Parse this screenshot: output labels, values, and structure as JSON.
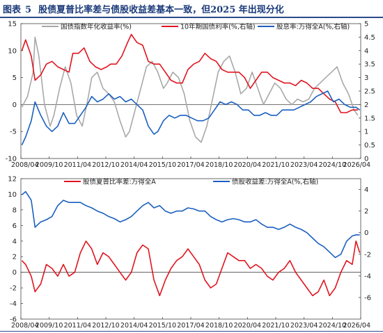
{
  "figure": {
    "label": "图表",
    "number": "5",
    "title": "股债夏普比率差与债股收益差基本一致，但2025 年出现分化"
  },
  "chart_data": [
    {
      "type": "line",
      "x_ticks": [
        "2008/04",
        "2009/10",
        "2011/04",
        "2012/10",
        "2014/04",
        "2015/10",
        "2017/04",
        "2018/10",
        "2020/04",
        "2021/10",
        "2023/04",
        "2024/10",
        "2026/04"
      ],
      "xlim": [
        2008.25,
        2026.25
      ],
      "ylim_left": [
        -10,
        15
      ],
      "yticks_left": [
        -10,
        -5,
        0,
        5,
        10,
        15
      ],
      "ylim_right": [
        0,
        5
      ],
      "yticks_right": [
        "0",
        "0.5",
        "1",
        "1.5",
        "2",
        "2.5",
        "3",
        "3.5",
        "4",
        "4.5",
        "5"
      ],
      "zero_line": true,
      "legend": "top",
      "series": [
        {
          "name": "国债指数年化收益率(%)",
          "axis": "left",
          "color": "#a8a8a8",
          "x": [
            2008.3,
            2008.6,
            2008.9,
            2009.0,
            2009.2,
            2009.5,
            2009.8,
            2010.0,
            2010.3,
            2010.6,
            2010.9,
            2011.2,
            2011.5,
            2011.8,
            2012.0,
            2012.3,
            2012.6,
            2012.9,
            2013.2,
            2013.5,
            2013.8,
            2014.0,
            2014.3,
            2014.6,
            2014.9,
            2015.2,
            2015.5,
            2015.8,
            2016.0,
            2016.3,
            2016.6,
            2016.9,
            2017.2,
            2017.5,
            2017.8,
            2018.1,
            2018.4,
            2018.7,
            2019.0,
            2019.3,
            2019.6,
            2019.9,
            2020.2,
            2020.5,
            2020.8,
            2021.1,
            2021.4,
            2021.7,
            2022.0,
            2022.3,
            2022.6,
            2022.9,
            2023.2,
            2023.5,
            2023.8,
            2024.1,
            2024.4,
            2024.7,
            2025.0,
            2025.3,
            2025.6,
            2025.9,
            2026.1
          ],
          "values": [
            -0.5,
            1.5,
            6,
            12.5,
            9,
            0,
            -4,
            -2,
            3,
            7,
            4,
            -2,
            -4,
            1,
            5,
            6,
            3,
            2,
            0.5,
            -3,
            -6,
            -5,
            -1,
            3,
            7,
            8,
            6,
            3,
            4,
            6,
            5,
            2,
            -3,
            -6,
            -7,
            -4,
            1,
            6,
            8,
            9,
            6,
            2,
            3,
            6,
            3,
            0,
            2,
            4,
            3,
            1,
            0,
            1,
            0.5,
            1,
            3,
            4,
            5,
            6,
            7,
            4,
            2,
            -1,
            -2
          ],
          "labels": []
        },
        {
          "name": "10年期国债利率(%,右轴)",
          "axis": "right",
          "color": "#e0141e",
          "x": [
            2008.3,
            2008.5,
            2008.8,
            2009.0,
            2009.3,
            2009.6,
            2009.9,
            2010.2,
            2010.5,
            2010.8,
            2011.0,
            2011.3,
            2011.6,
            2011.9,
            2012.2,
            2012.5,
            2012.8,
            2013.0,
            2013.3,
            2013.6,
            2013.9,
            2014.1,
            2014.4,
            2014.7,
            2015.0,
            2015.3,
            2015.6,
            2015.9,
            2016.2,
            2016.5,
            2016.8,
            2017.1,
            2017.4,
            2017.7,
            2018.0,
            2018.3,
            2018.6,
            2018.9,
            2019.2,
            2019.5,
            2019.8,
            2020.1,
            2020.4,
            2020.7,
            2021.0,
            2021.3,
            2021.6,
            2021.9,
            2022.2,
            2022.5,
            2022.8,
            2023.1,
            2023.4,
            2023.7,
            2024.0,
            2024.3,
            2024.6,
            2024.9,
            2025.2,
            2025.5,
            2025.8,
            2026.1
          ],
          "values": [
            4.0,
            4.4,
            3.8,
            2.9,
            3.1,
            3.5,
            3.6,
            3.4,
            3.3,
            3.2,
            3.9,
            3.9,
            4.1,
            3.6,
            3.4,
            3.3,
            3.4,
            3.5,
            3.5,
            3.8,
            4.3,
            4.6,
            4.3,
            4.2,
            3.6,
            3.5,
            3.5,
            3.2,
            2.9,
            2.8,
            2.8,
            3.3,
            3.5,
            3.6,
            3.9,
            3.7,
            3.6,
            3.3,
            3.2,
            3.2,
            3.2,
            3.0,
            2.6,
            2.9,
            3.2,
            3.2,
            3.0,
            2.9,
            2.8,
            2.8,
            2.7,
            2.9,
            2.8,
            2.6,
            2.6,
            2.4,
            2.2,
            2.1,
            1.7,
            1.7,
            1.8,
            1.8
          ],
          "labels": []
        },
        {
          "name": "股息率:万得全A(%,右轴)",
          "axis": "right",
          "color": "#1a5fc0",
          "x": [
            2008.3,
            2008.5,
            2008.8,
            2009.0,
            2009.3,
            2009.6,
            2009.9,
            2010.2,
            2010.5,
            2010.8,
            2011.1,
            2011.4,
            2011.7,
            2012.0,
            2012.3,
            2012.6,
            2012.9,
            2013.2,
            2013.5,
            2013.8,
            2014.1,
            2014.4,
            2014.7,
            2015.0,
            2015.3,
            2015.5,
            2015.8,
            2016.1,
            2016.4,
            2016.7,
            2017.0,
            2017.3,
            2017.6,
            2017.9,
            2018.2,
            2018.5,
            2018.8,
            2019.1,
            2019.4,
            2019.7,
            2020.0,
            2020.3,
            2020.6,
            2020.9,
            2021.2,
            2021.5,
            2021.8,
            2022.1,
            2022.4,
            2022.7,
            2023.0,
            2023.3,
            2023.6,
            2023.9,
            2024.2,
            2024.5,
            2024.8,
            2025.1,
            2025.4,
            2025.7,
            2026.0,
            2026.2
          ],
          "values": [
            0.5,
            0.8,
            1.4,
            2.1,
            1.6,
            1.2,
            1.0,
            1.2,
            1.7,
            1.3,
            1.3,
            1.6,
            1.9,
            2.3,
            2.1,
            2.2,
            2.4,
            2.2,
            2.3,
            2.1,
            2.2,
            2.0,
            1.8,
            1.2,
            0.9,
            1.0,
            1.4,
            1.6,
            1.5,
            1.6,
            1.6,
            1.5,
            1.4,
            1.4,
            1.5,
            1.8,
            2.1,
            2.0,
            2.1,
            2.0,
            1.8,
            1.8,
            1.6,
            1.6,
            1.7,
            1.6,
            1.6,
            1.8,
            1.8,
            1.8,
            1.9,
            2.0,
            2.1,
            2.3,
            2.4,
            2.5,
            2.1,
            2.2,
            2.0,
            1.9,
            1.9,
            1.8
          ],
          "labels": []
        }
      ]
    },
    {
      "type": "line",
      "x_ticks": [
        "2008/04",
        "2009/10",
        "2011/04",
        "2012/10",
        "2014/04",
        "2015/10",
        "2017/04",
        "2018/10",
        "2020/04",
        "2021/10",
        "2023/04",
        "2024/10",
        "2026/04"
      ],
      "xlim": [
        2008.25,
        2026.25
      ],
      "ylim_left": [
        -6,
        12
      ],
      "yticks_left": [
        -6,
        -4,
        -2,
        0,
        2,
        4,
        6,
        8,
        10,
        12
      ],
      "ylim_right": [
        -8,
        5
      ],
      "yticks_right": [
        -6,
        -4,
        -2,
        0,
        2,
        4
      ],
      "zero_line": true,
      "legend": "top",
      "series": [
        {
          "name": "股债夏普比率差:万得全A",
          "axis": "left",
          "color": "#e0141e",
          "x": [
            2008.3,
            2008.5,
            2008.8,
            2009.0,
            2009.3,
            2009.6,
            2009.9,
            2010.2,
            2010.5,
            2010.8,
            2011.1,
            2011.4,
            2011.7,
            2012.0,
            2012.3,
            2012.6,
            2012.9,
            2013.2,
            2013.5,
            2013.8,
            2014.1,
            2014.4,
            2014.7,
            2015.0,
            2015.3,
            2015.6,
            2015.9,
            2016.2,
            2016.5,
            2016.8,
            2017.1,
            2017.4,
            2017.7,
            2018.0,
            2018.3,
            2018.6,
            2018.9,
            2019.2,
            2019.5,
            2019.8,
            2020.1,
            2020.4,
            2020.7,
            2021.0,
            2021.3,
            2021.6,
            2021.9,
            2022.2,
            2022.5,
            2022.8,
            2023.1,
            2023.4,
            2023.7,
            2024.0,
            2024.3,
            2024.6,
            2024.9,
            2025.2,
            2025.5,
            2025.8,
            2026.0,
            2026.2
          ],
          "values": [
            1.5,
            1.0,
            -0.5,
            -2.5,
            -1.5,
            1.0,
            0.5,
            -0.5,
            1.0,
            -0.5,
            0.0,
            2.5,
            4.0,
            3.0,
            1.0,
            2.5,
            2.0,
            1.0,
            0.0,
            -1.0,
            0.0,
            2.5,
            3.5,
            3.0,
            -1.0,
            -3.0,
            -1.0,
            0.5,
            1.5,
            2.0,
            3.0,
            2.0,
            1.0,
            -1.0,
            -2.0,
            -1.5,
            0.5,
            2.5,
            2.0,
            1.5,
            1.5,
            0.5,
            1.0,
            0.5,
            -0.5,
            -1.0,
            0.0,
            0.5,
            1.5,
            0.0,
            -1.0,
            -2.0,
            -3.0,
            -2.5,
            -1.0,
            -3.0,
            -2.0,
            0.0,
            1.5,
            1.0,
            4.0,
            2.5
          ],
          "labels": []
        },
        {
          "name": "债股收益差:万得全A(%,右轴)",
          "axis": "right",
          "color": "#1a5fc0",
          "x": [
            2008.3,
            2008.5,
            2008.8,
            2009.0,
            2009.3,
            2009.6,
            2009.9,
            2010.2,
            2010.5,
            2010.8,
            2011.1,
            2011.4,
            2011.7,
            2012.0,
            2012.3,
            2012.6,
            2012.9,
            2013.2,
            2013.5,
            2013.8,
            2014.1,
            2014.4,
            2014.7,
            2015.0,
            2015.3,
            2015.6,
            2015.9,
            2016.2,
            2016.5,
            2016.8,
            2017.1,
            2017.4,
            2017.7,
            2018.0,
            2018.3,
            2018.6,
            2018.9,
            2019.2,
            2019.5,
            2019.8,
            2020.1,
            2020.4,
            2020.7,
            2021.0,
            2021.3,
            2021.6,
            2021.9,
            2022.2,
            2022.5,
            2022.8,
            2023.1,
            2023.4,
            2023.7,
            2024.0,
            2024.3,
            2024.6,
            2024.9,
            2025.2,
            2025.5,
            2025.8,
            2026.0,
            2026.2
          ],
          "values": [
            3.5,
            3.8,
            3.0,
            0.5,
            1.0,
            1.2,
            1.5,
            2.5,
            3.0,
            2.8,
            2.8,
            2.8,
            2.5,
            2.3,
            2.0,
            1.8,
            1.5,
            1.3,
            1.0,
            1.2,
            1.5,
            2.0,
            2.5,
            2.8,
            2.3,
            2.5,
            2.0,
            1.8,
            2.0,
            2.0,
            2.3,
            2.2,
            2.0,
            2.0,
            1.5,
            1.2,
            1.0,
            1.2,
            1.3,
            1.2,
            1.0,
            1.0,
            1.2,
            0.8,
            0.5,
            0.5,
            0.3,
            0.5,
            0.8,
            0.5,
            0.3,
            0.0,
            -0.5,
            -1.0,
            -1.3,
            -1.8,
            -2.3,
            -2.0,
            -0.8,
            -0.3,
            -0.2,
            -0.2
          ],
          "labels": []
        }
      ]
    }
  ]
}
